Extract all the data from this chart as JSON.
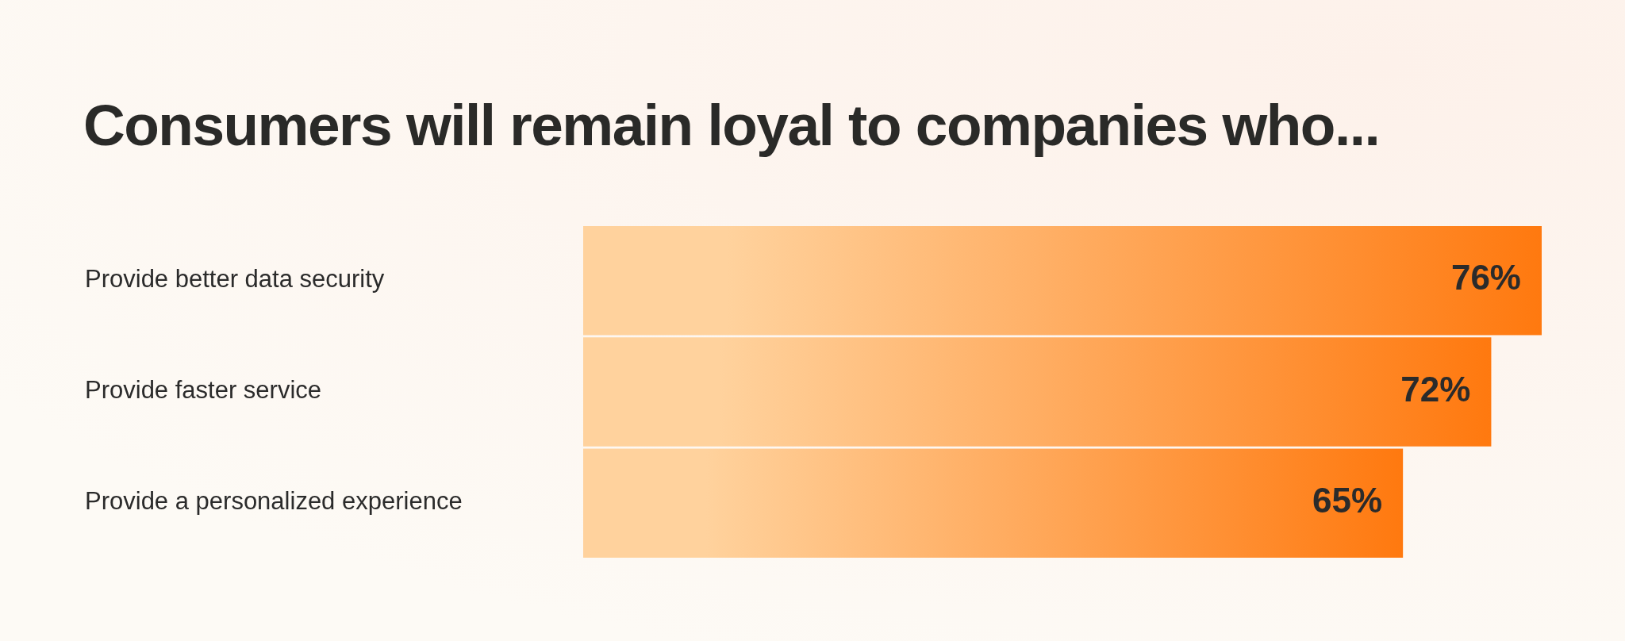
{
  "chart_data": {
    "type": "bar",
    "orientation": "horizontal",
    "title": "Consumers will remain loyal to companies who...",
    "categories": [
      "Provide better data security",
      "Provide faster service",
      "Provide a personalized experience"
    ],
    "values": [
      76,
      72,
      65
    ],
    "color": "#ffa53a",
    "data_labels": true,
    "value_labels": [
      "76%",
      "72%",
      "65%"
    ]
  }
}
